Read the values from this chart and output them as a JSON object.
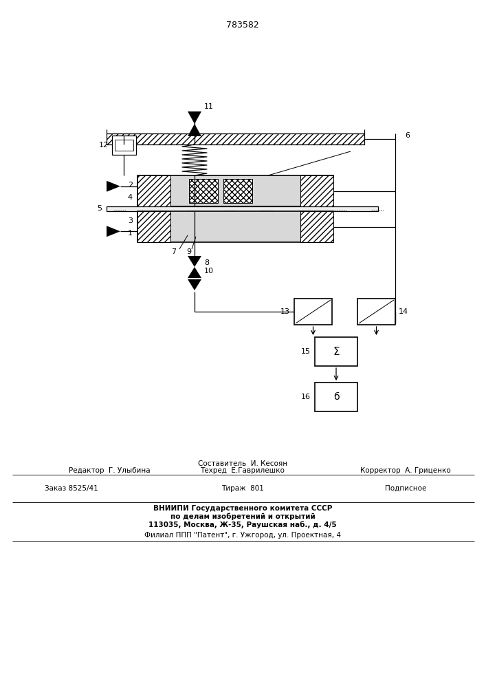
{
  "patent_number": "783582",
  "bg_color": "#ffffff",
  "fig_width": 7.07,
  "fig_height": 10.0,
  "footer": {
    "sestavitel": "Составитель  И. Кесоян",
    "redaktor": "Редактор  Г. Улыбина",
    "tehred": "Техред  Е.Гаврилешко",
    "korrektor": "Корректор  А. Гриценко",
    "zakaz": "Заказ 8525/41",
    "tirazh": "Тираж  801",
    "podpisnoe": "Подписное",
    "vniip1": "ВНИИПИ Государственного комитета СССР",
    "vniip2": "по делам изобретений и открытий",
    "vniip3": "113035, Москва, Ж-35, Раушская наб., д. 4/5",
    "filial": "Филиал ППП \"Патент\", г. Ужгород, ул. Проектная, 4"
  }
}
